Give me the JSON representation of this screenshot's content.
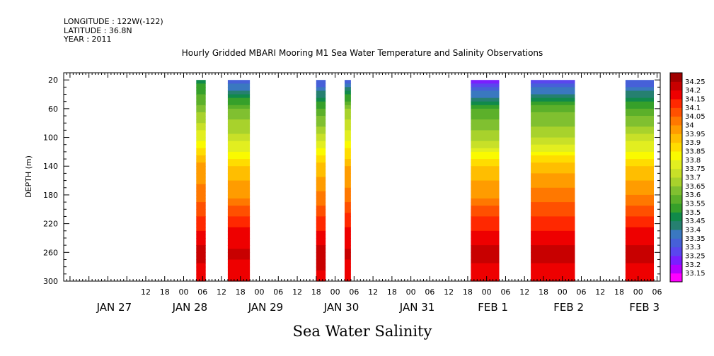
{
  "header": {
    "longitude": "LONGITUDE : 122W(-122)",
    "latitude": "LATITUDE : 36.8N",
    "year": "YEAR : 2011"
  },
  "chart_data": {
    "type": "heatmap",
    "title": "Hourly Gridded MBARI Mooring M1 Sea Water Temperature and Salinity Observations",
    "caption": "Sea Water Salinity",
    "ylabel": "DEPTH (m)",
    "xlabel": "",
    "x_units": "hours since Jan 27 00:00, 2011",
    "xlim": [
      -14,
      175
    ],
    "ylim": [
      300,
      10
    ],
    "y_inverted": true,
    "y_ticks": [
      20,
      60,
      100,
      140,
      180,
      220,
      260,
      300
    ],
    "x_hour_ticks": [
      "12",
      "18",
      "00",
      "06",
      "12",
      "18",
      "00",
      "06",
      "12",
      "18",
      "00",
      "06",
      "12",
      "18",
      "00",
      "06",
      "12",
      "18",
      "00",
      "06",
      "12",
      "18",
      "00",
      "06",
      "12",
      "18",
      "00",
      "06"
    ],
    "x_day_labels": [
      "JAN 27",
      "JAN 28",
      "JAN 29",
      "JAN 30",
      "JAN 31",
      "FEB  1",
      "FEB  2",
      "FEB  3"
    ],
    "colorbar": {
      "levels": [
        33.15,
        33.2,
        33.25,
        33.3,
        33.35,
        33.4,
        33.45,
        33.5,
        33.55,
        33.6,
        33.65,
        33.7,
        33.75,
        33.8,
        33.85,
        33.9,
        33.95,
        34,
        34.05,
        34.1,
        34.15,
        34.2,
        34.25
      ],
      "colors": [
        "#ff00ff",
        "#b400ff",
        "#7a1eff",
        "#5a46ee",
        "#4660d8",
        "#3a78c0",
        "#268070",
        "#108a4a",
        "#36a02a",
        "#5cb02a",
        "#80c030",
        "#a8d22c",
        "#c8e028",
        "#e2ee20",
        "#fafa00",
        "#ffdc00",
        "#ffbe00",
        "#ff9c00",
        "#ff7800",
        "#ff5000",
        "#ff2800",
        "#ee0000",
        "#c80000",
        "#a00000"
      ]
    },
    "depths": [
      20,
      60,
      100,
      140,
      180,
      220,
      260,
      300
    ],
    "segments": [
      {
        "start": 28,
        "end": 31,
        "salinity": [
          33.48,
          33.62,
          33.78,
          33.97,
          34.02,
          34.12,
          34.22,
          34.17
        ]
      },
      {
        "start": 38,
        "end": 45,
        "salinity": [
          33.3,
          33.6,
          33.72,
          33.9,
          33.99,
          34.14,
          34.21,
          34.17
        ]
      },
      {
        "start": 66,
        "end": 69,
        "salinity": [
          33.3,
          33.55,
          33.72,
          33.92,
          34.01,
          34.13,
          34.23,
          34.18
        ]
      },
      {
        "start": 75,
        "end": 77,
        "salinity": [
          33.32,
          33.65,
          33.78,
          33.95,
          34.02,
          34.14,
          34.21,
          34.17
        ]
      },
      {
        "start": 115,
        "end": 124,
        "salinity": [
          33.2,
          33.55,
          33.68,
          33.9,
          33.99,
          34.13,
          34.22,
          34.17
        ]
      },
      {
        "start": 134,
        "end": 148,
        "salinity": [
          33.25,
          33.58,
          33.7,
          33.92,
          34.02,
          34.13,
          34.22,
          34.17
        ]
      },
      {
        "start": 164,
        "end": 173,
        "salinity": [
          33.3,
          33.55,
          33.72,
          33.9,
          34.0,
          34.14,
          34.22,
          34.17
        ]
      }
    ]
  }
}
